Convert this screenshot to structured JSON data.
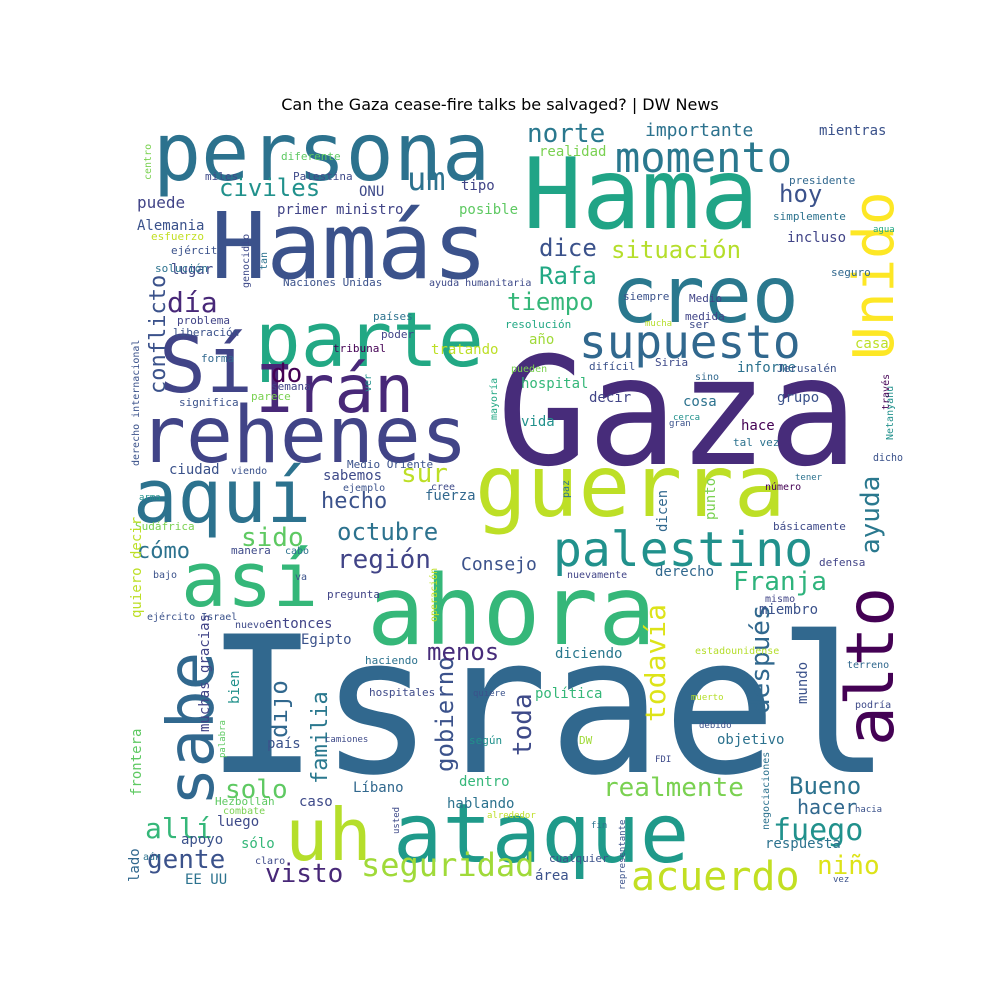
{
  "title": "Can the Gaza cease-fire talks be salvaged? | DW News",
  "chart_data": {
    "type": "wordcloud",
    "title": "Can the Gaza cease-fire talks be salvaged? | DW News",
    "colormap": "viridis",
    "background": "#ffffff",
    "words": [
      {
        "text": "Israel",
        "weight": 1.0,
        "color": "#31688e"
      },
      {
        "text": "Gaza",
        "weight": 0.86,
        "color": "#472c7a"
      },
      {
        "text": "Hama",
        "weight": 0.6,
        "color": "#20a486"
      },
      {
        "text": "Hamás",
        "weight": 0.58,
        "color": "#3b528b"
      },
      {
        "text": "persona",
        "weight": 0.56,
        "color": "#2c728e"
      },
      {
        "text": "ahora",
        "weight": 0.6,
        "color": "#35b779"
      },
      {
        "text": "guerra",
        "weight": 0.55,
        "color": "#bddf26"
      },
      {
        "text": "ataque",
        "weight": 0.5,
        "color": "#1f9a8a"
      },
      {
        "text": "rehenes",
        "weight": 0.5,
        "color": "#414487"
      },
      {
        "text": "creo",
        "weight": 0.48,
        "color": "#2a788e"
      },
      {
        "text": "parte",
        "weight": 0.46,
        "color": "#22a884"
      },
      {
        "text": "Sí",
        "weight": 0.46,
        "color": "#414487"
      },
      {
        "text": "así",
        "weight": 0.44,
        "color": "#35b779"
      },
      {
        "text": "aquí",
        "weight": 0.44,
        "color": "#2c728e"
      },
      {
        "text": "alto",
        "weight": 0.42,
        "color": "#440154"
      },
      {
        "text": "uh",
        "weight": 0.42,
        "color": "#b5de2b"
      },
      {
        "text": "sabe",
        "weight": 0.42,
        "color": "#31688e"
      },
      {
        "text": "Irán",
        "weight": 0.42,
        "color": "#482878"
      },
      {
        "text": "Unido",
        "weight": 0.4,
        "color": "#fde725"
      },
      {
        "text": "supuesto",
        "weight": 0.28,
        "color": "#31688e"
      },
      {
        "text": "palestino",
        "weight": 0.3,
        "color": "#21918c"
      },
      {
        "text": "momento",
        "weight": 0.26,
        "color": "#2a788e"
      },
      {
        "text": "acuerdo",
        "weight": 0.24,
        "color": "#c2df23"
      },
      {
        "text": "conflicto",
        "weight": 0.2,
        "color": "#3b528b"
      },
      {
        "text": "todavía",
        "weight": 0.18,
        "color": "#dde318"
      },
      {
        "text": "después",
        "weight": 0.18,
        "color": "#31688e"
      },
      {
        "text": "ayuda",
        "weight": 0.18,
        "color": "#2a788e"
      },
      {
        "text": "seguridad",
        "weight": 0.18,
        "color": "#a0da39"
      },
      {
        "text": "gobierno",
        "weight": 0.16,
        "color": "#3b528b"
      },
      {
        "text": "familia",
        "weight": 0.16,
        "color": "#2a788e"
      },
      {
        "text": "realmente",
        "weight": 0.16,
        "color": "#7ad151"
      },
      {
        "text": "toda",
        "weight": 0.16,
        "color": "#3e4a89"
      },
      {
        "text": "situación",
        "weight": 0.16,
        "color": "#b5de2b"
      },
      {
        "text": "tiempo",
        "weight": 0.16,
        "color": "#35b779"
      },
      {
        "text": "norte",
        "weight": 0.16,
        "color": "#2a788e"
      },
      {
        "text": "Franja",
        "weight": 0.16,
        "color": "#2eb37c"
      },
      {
        "text": "región",
        "weight": 0.15,
        "color": "#414487"
      },
      {
        "text": "hecho",
        "weight": 0.15,
        "color": "#3b528b"
      },
      {
        "text": "octubre",
        "weight": 0.15,
        "color": "#2c728e"
      },
      {
        "text": "fuego",
        "weight": 0.15,
        "color": "#21918c"
      },
      {
        "text": "gente",
        "weight": 0.14,
        "color": "#3b528b"
      },
      {
        "text": "visto",
        "weight": 0.14,
        "color": "#482878"
      },
      {
        "text": "dijo",
        "weight": 0.14,
        "color": "#31688e"
      },
      {
        "text": "menos",
        "weight": 0.14,
        "color": "#472c7a"
      },
      {
        "text": "día",
        "weight": 0.14,
        "color": "#482878"
      },
      {
        "text": "civiles",
        "weight": 0.14,
        "color": "#21918c"
      },
      {
        "text": "um",
        "weight": 0.14,
        "color": "#2c728e"
      },
      {
        "text": "dice",
        "weight": 0.14,
        "color": "#3b528b"
      },
      {
        "text": "Rafa",
        "weight": 0.14,
        "color": "#22a884"
      },
      {
        "text": "hoy",
        "weight": 0.14,
        "color": "#3b528b"
      },
      {
        "text": "sur",
        "weight": 0.14,
        "color": "#bddf26"
      },
      {
        "text": "sido",
        "weight": 0.14,
        "color": "#5ec962"
      },
      {
        "text": "cómo",
        "weight": 0.13,
        "color": "#2c728e"
      },
      {
        "text": "solo",
        "weight": 0.14,
        "color": "#5ec962"
      },
      {
        "text": "allí",
        "weight": 0.14,
        "color": "#35b779"
      },
      {
        "text": "niño",
        "weight": 0.13,
        "color": "#dde318"
      },
      {
        "text": "Bueno",
        "weight": 0.13,
        "color": "#2c728e"
      },
      {
        "text": "importante",
        "weight": 0.11,
        "color": "#2c728e"
      },
      {
        "text": "Consejo",
        "weight": 0.11,
        "color": "#3b528b"
      },
      {
        "text": "do",
        "weight": 0.13,
        "color": "#440154"
      },
      {
        "text": "hacer",
        "weight": 0.11,
        "color": "#31688e"
      },
      {
        "text": "mientras",
        "weight": 0.09,
        "color": "#3b528b"
      },
      {
        "text": "realidad",
        "weight": 0.08,
        "color": "#7ad151"
      },
      {
        "text": "tipo",
        "weight": 0.08,
        "color": "#414487"
      },
      {
        "text": "ONU",
        "weight": 0.08,
        "color": "#3e4a89"
      },
      {
        "text": "puede",
        "weight": 0.09,
        "color": "#414487"
      },
      {
        "text": "primer ministro",
        "weight": 0.08,
        "color": "#414487"
      },
      {
        "text": "posible",
        "weight": 0.08,
        "color": "#5ec962"
      },
      {
        "text": "Alemania",
        "weight": 0.07,
        "color": "#3b528b"
      },
      {
        "text": "incluso",
        "weight": 0.08,
        "color": "#414487"
      },
      {
        "text": "lugar",
        "weight": 0.08,
        "color": "#3e4a89"
      },
      {
        "text": "diferente",
        "weight": 0.06,
        "color": "#5ec962"
      },
      {
        "text": "Palestina",
        "weight": 0.06,
        "color": "#3e4a89"
      },
      {
        "text": "miles",
        "weight": 0.06,
        "color": "#3e4a89"
      },
      {
        "text": "centro",
        "weight": 0.05,
        "color": "#7ad151"
      },
      {
        "text": "presidente",
        "weight": 0.06,
        "color": "#31688e"
      },
      {
        "text": "simplemente",
        "weight": 0.06,
        "color": "#2c728e"
      },
      {
        "text": "agua",
        "weight": 0.05,
        "color": "#22a884"
      },
      {
        "text": "seguro",
        "weight": 0.06,
        "color": "#31688e"
      },
      {
        "text": "esfuerzo",
        "weight": 0.06,
        "color": "#c2df23"
      },
      {
        "text": "ejército",
        "weight": 0.06,
        "color": "#3b528b"
      },
      {
        "text": "solución",
        "weight": 0.06,
        "color": "#2c728e"
      },
      {
        "text": "genocidio",
        "weight": 0.05,
        "color": "#3e4a89"
      },
      {
        "text": "tan",
        "weight": 0.05,
        "color": "#2c728e"
      },
      {
        "text": "Naciones Unidas",
        "weight": 0.06,
        "color": "#3b528b"
      },
      {
        "text": "ayuda humanitaria",
        "weight": 0.06,
        "color": "#3e4a89"
      },
      {
        "text": "siempre",
        "weight": 0.06,
        "color": "#3b528b"
      },
      {
        "text": "Medio",
        "weight": 0.06,
        "color": "#414487"
      },
      {
        "text": "problema",
        "weight": 0.06,
        "color": "#414487"
      },
      {
        "text": "países",
        "weight": 0.06,
        "color": "#2c728e"
      },
      {
        "text": "medida",
        "weight": 0.06,
        "color": "#414487"
      },
      {
        "text": "mucha",
        "weight": 0.05,
        "color": "#b5de2b"
      },
      {
        "text": "ser",
        "weight": 0.06,
        "color": "#3e4a89"
      },
      {
        "text": "resolución",
        "weight": 0.06,
        "color": "#22a884"
      },
      {
        "text": "liberación",
        "weight": 0.06,
        "color": "#3b528b"
      },
      {
        "text": "poder",
        "weight": 0.06,
        "color": "#414487"
      },
      {
        "text": "año",
        "weight": 0.08,
        "color": "#a0da39"
      },
      {
        "text": "casa",
        "weight": 0.08,
        "color": "#bddf26"
      },
      {
        "text": "tribunal",
        "weight": 0.06,
        "color": "#440154"
      },
      {
        "text": "tratando",
        "weight": 0.08,
        "color": "#bddf26"
      },
      {
        "text": "forma",
        "weight": 0.06,
        "color": "#31688e"
      },
      {
        "text": "derecho internacional",
        "weight": 0.05,
        "color": "#3b528b"
      },
      {
        "text": "semana",
        "weight": 0.06,
        "color": "#414487"
      },
      {
        "text": "ver",
        "weight": 0.05,
        "color": "#21918c"
      },
      {
        "text": "hospital",
        "weight": 0.08,
        "color": "#35b779"
      },
      {
        "text": "mayoría",
        "weight": 0.05,
        "color": "#22a884"
      },
      {
        "text": "pueden",
        "weight": 0.05,
        "color": "#7ad151"
      },
      {
        "text": "difícil",
        "weight": 0.06,
        "color": "#3b528b"
      },
      {
        "text": "Siria",
        "weight": 0.06,
        "color": "#3e4a89"
      },
      {
        "text": "sino",
        "weight": 0.05,
        "color": "#31688e"
      },
      {
        "text": "informe",
        "weight": 0.08,
        "color": "#2c728e"
      },
      {
        "text": "Jerusalén",
        "weight": 0.06,
        "color": "#3b528b"
      },
      {
        "text": "Netanyahu",
        "weight": 0.05,
        "color": "#21918c"
      },
      {
        "text": "través",
        "weight": 0.05,
        "color": "#440154"
      },
      {
        "text": "significa",
        "weight": 0.06,
        "color": "#3b528b"
      },
      {
        "text": "parece",
        "weight": 0.06,
        "color": "#7ad151"
      },
      {
        "text": "decir",
        "weight": 0.08,
        "color": "#414487"
      },
      {
        "text": "cosa",
        "weight": 0.08,
        "color": "#2c728e"
      },
      {
        "text": "grupo",
        "weight": 0.08,
        "color": "#3b528b"
      },
      {
        "text": "hace",
        "weight": 0.08,
        "color": "#440154"
      },
      {
        "text": "vida",
        "weight": 0.08,
        "color": "#21918c"
      },
      {
        "text": "cerca",
        "weight": 0.05,
        "color": "#21918c"
      },
      {
        "text": "gran",
        "weight": 0.05,
        "color": "#3b528b"
      },
      {
        "text": "tal vez",
        "weight": 0.06,
        "color": "#2c728e"
      },
      {
        "text": "dicho",
        "weight": 0.06,
        "color": "#3b528b"
      },
      {
        "text": "ciudad",
        "weight": 0.08,
        "color": "#3b528b"
      },
      {
        "text": "viendo",
        "weight": 0.05,
        "color": "#3b528b"
      },
      {
        "text": "Medio Oriente",
        "weight": 0.06,
        "color": "#3b528b"
      },
      {
        "text": "sabemos",
        "weight": 0.07,
        "color": "#3e4a89"
      },
      {
        "text": "paz",
        "weight": 0.06,
        "color": "#2c728e"
      },
      {
        "text": "tener",
        "weight": 0.05,
        "color": "#2c728e"
      },
      {
        "text": "número",
        "weight": 0.06,
        "color": "#440154"
      },
      {
        "text": "arma",
        "weight": 0.05,
        "color": "#21918c"
      },
      {
        "text": "ejemplo",
        "weight": 0.05,
        "color": "#3b528b"
      },
      {
        "text": "cree",
        "weight": 0.05,
        "color": "#3e4a89"
      },
      {
        "text": "fuerza",
        "weight": 0.08,
        "color": "#31688e"
      },
      {
        "text": "dicen",
        "weight": 0.08,
        "color": "#31688e"
      },
      {
        "text": "punto",
        "weight": 0.07,
        "color": "#7ad151"
      },
      {
        "text": "Sudáfrica",
        "weight": 0.05,
        "color": "#7ad151"
      },
      {
        "text": "básicamente",
        "weight": 0.06,
        "color": "#3e4a89"
      },
      {
        "text": "manera",
        "weight": 0.06,
        "color": "#3e4a89"
      },
      {
        "text": "cabo",
        "weight": 0.05,
        "color": "#2c728e"
      },
      {
        "text": "nuevamente",
        "weight": 0.06,
        "color": "#414487"
      },
      {
        "text": "derecho",
        "weight": 0.07,
        "color": "#31688e"
      },
      {
        "text": "defensa",
        "weight": 0.06,
        "color": "#414487"
      },
      {
        "text": "bajo",
        "weight": 0.06,
        "color": "#3b528b"
      },
      {
        "text": "va",
        "weight": 0.05,
        "color": "#3b528b"
      },
      {
        "text": "pregunta",
        "weight": 0.06,
        "color": "#414487"
      },
      {
        "text": "quiero decir",
        "weight": 0.07,
        "color": "#bddf26"
      },
      {
        "text": "operación",
        "weight": 0.05,
        "color": "#bddf26"
      },
      {
        "text": "mismo",
        "weight": 0.05,
        "color": "#414487"
      },
      {
        "text": "miembro",
        "weight": 0.08,
        "color": "#3b528b"
      },
      {
        "text": "ejército Israel",
        "weight": 0.06,
        "color": "#3b528b"
      },
      {
        "text": "nuevo",
        "weight": 0.05,
        "color": "#3e4a89"
      },
      {
        "text": "entonces",
        "weight": 0.09,
        "color": "#414487"
      },
      {
        "text": "Egipto",
        "weight": 0.08,
        "color": "#3b528b"
      },
      {
        "text": "diciendo",
        "weight": 0.08,
        "color": "#2a788e"
      },
      {
        "text": "estadounidense",
        "weight": 0.05,
        "color": "#b5de2b"
      },
      {
        "text": "terreno",
        "weight": 0.05,
        "color": "#31688e"
      },
      {
        "text": "muchas gracias",
        "weight": 0.08,
        "color": "#414487"
      },
      {
        "text": "haciendo",
        "weight": 0.06,
        "color": "#2c728e"
      },
      {
        "text": "mundo",
        "weight": 0.07,
        "color": "#3b528b"
      },
      {
        "text": "bien",
        "weight": 0.07,
        "color": "#21918c"
      },
      {
        "text": "hospitales",
        "weight": 0.06,
        "color": "#3e4a89"
      },
      {
        "text": "quiere",
        "weight": 0.05,
        "color": "#3b528b"
      },
      {
        "text": "política",
        "weight": 0.08,
        "color": "#35b779"
      },
      {
        "text": "muerto",
        "weight": 0.05,
        "color": "#b5de2b"
      },
      {
        "text": "podría",
        "weight": 0.06,
        "color": "#3e4a89"
      },
      {
        "text": "palabra",
        "weight": 0.05,
        "color": "#5ec962"
      },
      {
        "text": "debido",
        "weight": 0.05,
        "color": "#3b528b"
      },
      {
        "text": "frontera",
        "weight": 0.08,
        "color": "#5ec962"
      },
      {
        "text": "país",
        "weight": 0.08,
        "color": "#3b528b"
      },
      {
        "text": "camiones",
        "weight": 0.05,
        "color": "#3e4a89"
      },
      {
        "text": "según",
        "weight": 0.06,
        "color": "#21918c"
      },
      {
        "text": "DW",
        "weight": 0.06,
        "color": "#a0da39"
      },
      {
        "text": "objetivo",
        "weight": 0.08,
        "color": "#2c728e"
      },
      {
        "text": "FDI",
        "weight": 0.05,
        "color": "#3e4a89"
      },
      {
        "text": "negociaciones",
        "weight": 0.05,
        "color": "#2c728e"
      },
      {
        "text": "Líbano",
        "weight": 0.08,
        "color": "#31688e"
      },
      {
        "text": "dentro",
        "weight": 0.09,
        "color": "#35b779"
      },
      {
        "text": "hablando",
        "weight": 0.09,
        "color": "#2c728e"
      },
      {
        "text": "caso",
        "weight": 0.08,
        "color": "#3e4a89"
      },
      {
        "text": "Hezbolláh",
        "weight": 0.06,
        "color": "#5ec962"
      },
      {
        "text": "combate",
        "weight": 0.05,
        "color": "#7ad151"
      },
      {
        "text": "luego",
        "weight": 0.08,
        "color": "#3e4a89"
      },
      {
        "text": "usted",
        "weight": 0.05,
        "color": "#3e4a89"
      },
      {
        "text": "alrededor",
        "weight": 0.05,
        "color": "#bddf26"
      },
      {
        "text": "fin",
        "weight": 0.05,
        "color": "#2c728e"
      },
      {
        "text": "hacia",
        "weight": 0.05,
        "color": "#3b528b"
      },
      {
        "text": "apoyo",
        "weight": 0.08,
        "color": "#3b528b"
      },
      {
        "text": "sólo",
        "weight": 0.08,
        "color": "#35b779"
      },
      {
        "text": "respuesta",
        "weight": 0.08,
        "color": "#2c728e"
      },
      {
        "text": "aún",
        "weight": 0.05,
        "color": "#2c728e"
      },
      {
        "text": "claro",
        "weight": 0.05,
        "color": "#3e4a89"
      },
      {
        "text": "cualquier",
        "weight": 0.06,
        "color": "#3b528b"
      },
      {
        "text": "representante",
        "weight": 0.05,
        "color": "#3b528b"
      },
      {
        "text": "lado",
        "weight": 0.07,
        "color": "#31688e"
      },
      {
        "text": "EE UU",
        "weight": 0.08,
        "color": "#2c728e"
      },
      {
        "text": "área",
        "weight": 0.07,
        "color": "#3b528b"
      },
      {
        "text": "vez",
        "weight": 0.05,
        "color": "#3b528b"
      }
    ]
  }
}
